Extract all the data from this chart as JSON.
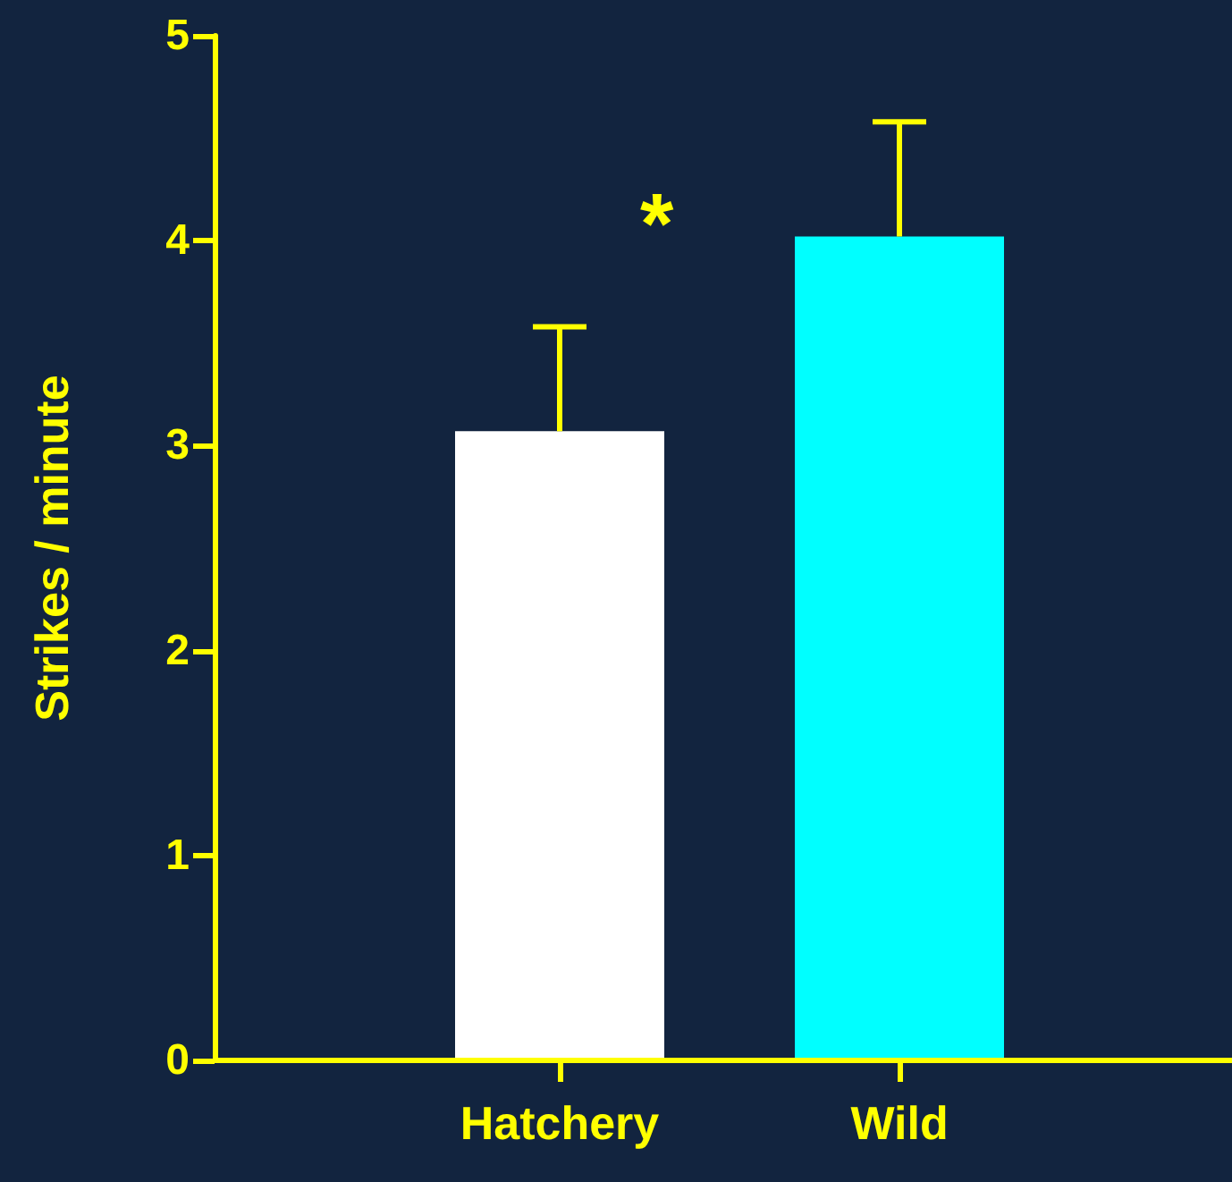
{
  "chart_data": {
    "type": "bar",
    "ylabel": "Strikes / minute",
    "categories": [
      "Hatchery",
      "Wild"
    ],
    "values": [
      3.07,
      4.02
    ],
    "colors": [
      "#ffffff",
      "#00ffff"
    ],
    "errors": [
      [
        3.07,
        3.58
      ],
      [
        4.02,
        4.58
      ]
    ],
    "ylim": [
      0,
      5
    ],
    "yticks": [
      0,
      1,
      2,
      3,
      4,
      5
    ],
    "annotations": [
      "*"
    ],
    "grid": false
  }
}
